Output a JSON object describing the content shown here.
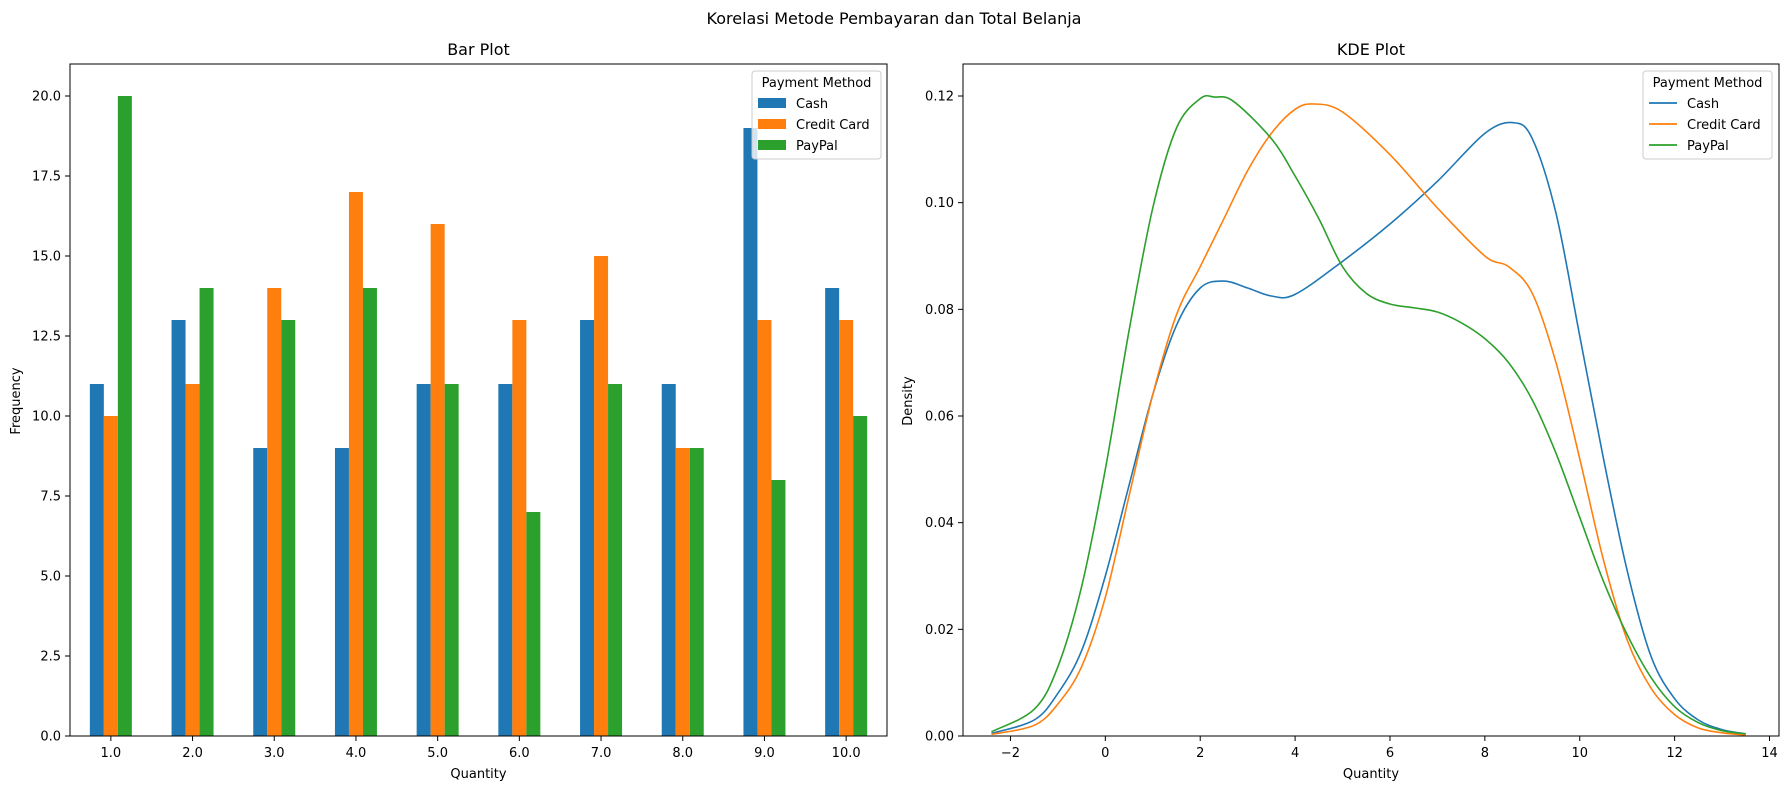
{
  "figure_title": "Korelasi Metode Pembayaran dan Total Belanja",
  "colors": {
    "Cash": "#1f77b4",
    "Credit Card": "#ff7f0e",
    "PayPal": "#2ca02c"
  },
  "chart_data": [
    {
      "type": "bar",
      "title": "Bar Plot",
      "xlabel": "Quantity",
      "ylabel": "Frequency",
      "ylim": [
        0,
        21
      ],
      "yticks": [
        0.0,
        2.5,
        5.0,
        7.5,
        10.0,
        12.5,
        15.0,
        17.5,
        20.0
      ],
      "ytick_labels": [
        "0.0",
        "2.5",
        "5.0",
        "7.5",
        "10.0",
        "12.5",
        "15.0",
        "17.5",
        "20.0"
      ],
      "categories": [
        "1.0",
        "2.0",
        "3.0",
        "4.0",
        "5.0",
        "6.0",
        "7.0",
        "8.0",
        "9.0",
        "10.0"
      ],
      "legend_title": "Payment Method",
      "legend_position": "top-right",
      "series": [
        {
          "name": "Cash",
          "values": [
            11,
            13,
            9,
            9,
            11,
            11,
            13,
            11,
            19,
            14
          ]
        },
        {
          "name": "Credit Card",
          "values": [
            10,
            11,
            14,
            17,
            16,
            13,
            15,
            9,
            13,
            13
          ]
        },
        {
          "name": "PayPal",
          "values": [
            20,
            14,
            13,
            14,
            11,
            7,
            11,
            9,
            8,
            10
          ]
        }
      ]
    },
    {
      "type": "line",
      "title": "KDE Plot",
      "xlabel": "Quantity",
      "ylabel": "Density",
      "xlim": [
        -3,
        14.2
      ],
      "ylim": [
        0,
        0.126
      ],
      "xticks": [
        -2,
        0,
        2,
        4,
        6,
        8,
        10,
        12,
        14
      ],
      "xtick_labels": [
        "−2",
        "0",
        "2",
        "4",
        "6",
        "8",
        "10",
        "12",
        "14"
      ],
      "yticks": [
        0.0,
        0.02,
        0.04,
        0.06,
        0.08,
        0.1,
        0.12
      ],
      "ytick_labels": [
        "0.00",
        "0.02",
        "0.04",
        "0.06",
        "0.08",
        "0.10",
        "0.12"
      ],
      "legend_title": "Payment Method",
      "legend_position": "top-right",
      "series": [
        {
          "name": "Cash",
          "x": [
            -2.4,
            -1.5,
            -1,
            -0.5,
            0,
            0.5,
            1,
            1.5,
            2,
            2.5,
            3,
            3.5,
            4,
            5,
            6,
            7,
            8,
            8.6,
            9,
            9.5,
            10,
            10.5,
            11,
            11.5,
            12,
            12.5,
            13,
            13.5
          ],
          "y": [
            0.0005,
            0.003,
            0.008,
            0.016,
            0.03,
            0.047,
            0.064,
            0.077,
            0.084,
            0.0853,
            0.084,
            0.0825,
            0.0828,
            0.089,
            0.096,
            0.104,
            0.113,
            0.115,
            0.112,
            0.098,
            0.075,
            0.052,
            0.031,
            0.015,
            0.007,
            0.003,
            0.0012,
            0.0004
          ]
        },
        {
          "name": "Credit Card",
          "x": [
            -2.4,
            -1.5,
            -1,
            -0.5,
            0,
            0.5,
            1,
            1.5,
            2,
            2.5,
            3,
            3.5,
            4,
            4.4,
            5,
            6,
            7,
            8,
            8.5,
            9,
            9.5,
            10,
            10.5,
            11,
            11.5,
            12,
            12.5,
            13,
            13.5
          ],
          "y": [
            0.0003,
            0.002,
            0.006,
            0.013,
            0.026,
            0.045,
            0.064,
            0.079,
            0.088,
            0.097,
            0.106,
            0.113,
            0.1175,
            0.1185,
            0.117,
            0.109,
            0.099,
            0.09,
            0.088,
            0.083,
            0.07,
            0.052,
            0.033,
            0.018,
            0.009,
            0.004,
            0.0015,
            0.0006,
            0.0002
          ]
        },
        {
          "name": "PayPal",
          "x": [
            -2.4,
            -1.5,
            -1,
            -0.5,
            0,
            0.5,
            1,
            1.5,
            2,
            2.3,
            2.7,
            3.5,
            4,
            4.5,
            5,
            5.5,
            6,
            6.5,
            7,
            7.5,
            8,
            8.5,
            9,
            9.5,
            10,
            10.5,
            11,
            11.5,
            12,
            12.5,
            13,
            13.5
          ],
          "y": [
            0.0008,
            0.005,
            0.013,
            0.028,
            0.05,
            0.076,
            0.099,
            0.114,
            0.1195,
            0.1198,
            0.119,
            0.112,
            0.105,
            0.097,
            0.088,
            0.083,
            0.081,
            0.0803,
            0.0795,
            0.0775,
            0.0745,
            0.07,
            0.063,
            0.053,
            0.041,
            0.029,
            0.019,
            0.011,
            0.0055,
            0.0025,
            0.001,
            0.0004
          ]
        }
      ]
    }
  ]
}
